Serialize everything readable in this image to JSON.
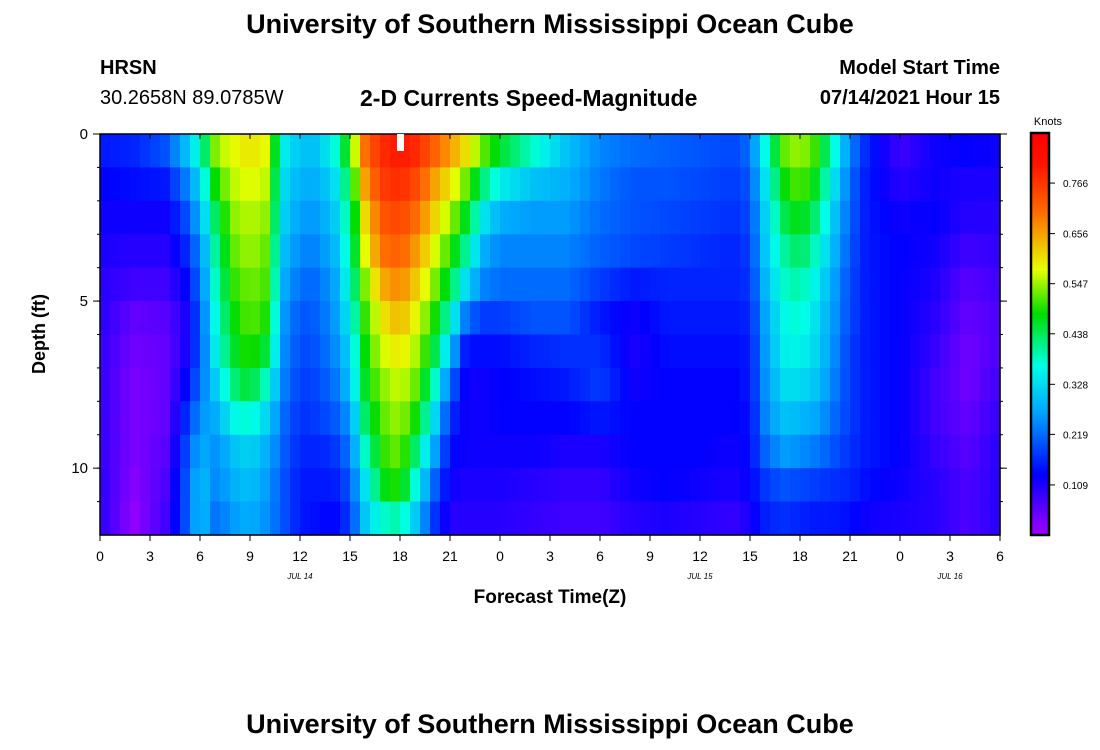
{
  "titles": {
    "top": "University of Southern Mississippi Ocean Cube",
    "bottom": "University of Southern Mississippi Ocean Cube"
  },
  "station": {
    "name": "HRSN",
    "coords": "30.2658N  89.0785W"
  },
  "model": {
    "label": "Model Start Time",
    "value": "07/14/2021 Hour 15"
  },
  "chart_data": {
    "type": "heatmap",
    "title": "2-D Currents Speed-Magnitude",
    "xlabel": "Forecast Time(Z)",
    "ylabel": "Depth (ft)",
    "x_tick_labels": [
      "0",
      "3",
      "6",
      "9",
      "12",
      "15",
      "18",
      "21",
      "0",
      "3",
      "6",
      "9",
      "12",
      "15",
      "18",
      "21",
      "0",
      "3",
      "6"
    ],
    "x_hours": [
      0,
      3,
      6,
      9,
      12,
      15,
      18,
      21,
      24,
      27,
      30,
      33,
      36,
      39,
      42,
      45,
      48,
      51,
      54
    ],
    "date_labels": [
      {
        "label": "JUL 14",
        "hour": 12
      },
      {
        "label": "JUL 15",
        "hour": 36
      },
      {
        "label": "JUL 16",
        "hour": 51
      }
    ],
    "xlim": [
      0,
      54
    ],
    "y_tick_labels": [
      "0",
      "5",
      "10"
    ],
    "y_ticks": [
      0,
      5,
      10
    ],
    "ylim": [
      0,
      12
    ],
    "y_inverted": true,
    "colorbar": {
      "units": "Knots",
      "tick_labels": [
        "0.766",
        "0.656",
        "0.547",
        "0.438",
        "0.328",
        "0.219",
        "0.109"
      ],
      "tick_values": [
        0.766,
        0.656,
        0.547,
        0.438,
        0.328,
        0.219,
        0.109
      ],
      "range": [
        0.0,
        0.875
      ]
    },
    "depths": [
      0.5,
      1.5,
      2.5,
      3.5,
      4.5,
      5.5,
      6.5,
      7.5,
      8.5,
      9.5,
      10.5,
      11.5
    ],
    "profiles": [
      {
        "hour": 0,
        "values": [
          0.15,
          0.13,
          0.12,
          0.11,
          0.1,
          0.1,
          0.09,
          0.09,
          0.09,
          0.09,
          0.1,
          0.1
        ]
      },
      {
        "hour": 2,
        "values": [
          0.16,
          0.14,
          0.12,
          0.1,
          0.08,
          0.05,
          0.04,
          0.03,
          0.03,
          0.03,
          0.02,
          0.01
        ]
      },
      {
        "hour": 4,
        "values": [
          0.2,
          0.15,
          0.12,
          0.1,
          0.08,
          0.06,
          0.05,
          0.05,
          0.05,
          0.06,
          0.07,
          0.08
        ]
      },
      {
        "hour": 5,
        "values": [
          0.28,
          0.22,
          0.18,
          0.15,
          0.12,
          0.1,
          0.1,
          0.12,
          0.15,
          0.17,
          0.18,
          0.18
        ]
      },
      {
        "hour": 6,
        "values": [
          0.38,
          0.32,
          0.28,
          0.24,
          0.22,
          0.2,
          0.2,
          0.22,
          0.25,
          0.28,
          0.3,
          0.3
        ]
      },
      {
        "hour": 7,
        "values": [
          0.55,
          0.5,
          0.45,
          0.42,
          0.4,
          0.38,
          0.36,
          0.32,
          0.28,
          0.25,
          0.24,
          0.22
        ]
      },
      {
        "hour": 8,
        "values": [
          0.58,
          0.56,
          0.54,
          0.52,
          0.5,
          0.48,
          0.46,
          0.42,
          0.36,
          0.3,
          0.28,
          0.26
        ]
      },
      {
        "hour": 9,
        "values": [
          0.6,
          0.58,
          0.56,
          0.55,
          0.53,
          0.52,
          0.5,
          0.46,
          0.38,
          0.32,
          0.3,
          0.28
        ]
      },
      {
        "hour": 10,
        "values": [
          0.58,
          0.56,
          0.54,
          0.52,
          0.51,
          0.49,
          0.45,
          0.38,
          0.32,
          0.28,
          0.26,
          0.25
        ]
      },
      {
        "hour": 11,
        "values": [
          0.35,
          0.33,
          0.32,
          0.3,
          0.28,
          0.26,
          0.25,
          0.24,
          0.22,
          0.21,
          0.2,
          0.2
        ]
      },
      {
        "hour": 12,
        "values": [
          0.3,
          0.28,
          0.26,
          0.24,
          0.22,
          0.2,
          0.19,
          0.18,
          0.17,
          0.16,
          0.15,
          0.15
        ]
      },
      {
        "hour": 13,
        "values": [
          0.3,
          0.28,
          0.26,
          0.24,
          0.22,
          0.21,
          0.2,
          0.19,
          0.18,
          0.16,
          0.15,
          0.14
        ]
      },
      {
        "hour": 14,
        "values": [
          0.36,
          0.32,
          0.3,
          0.28,
          0.26,
          0.25,
          0.24,
          0.22,
          0.2,
          0.17,
          0.15,
          0.13
        ]
      },
      {
        "hour": 15,
        "values": [
          0.5,
          0.45,
          0.42,
          0.4,
          0.38,
          0.35,
          0.32,
          0.3,
          0.26,
          0.23,
          0.2,
          0.18
        ]
      },
      {
        "hour": 16,
        "values": [
          0.72,
          0.68,
          0.63,
          0.6,
          0.55,
          0.52,
          0.5,
          0.48,
          0.45,
          0.4,
          0.35,
          0.32
        ]
      },
      {
        "hour": 17,
        "values": [
          0.78,
          0.76,
          0.73,
          0.7,
          0.65,
          0.6,
          0.57,
          0.54,
          0.52,
          0.5,
          0.47,
          0.38
        ]
      },
      {
        "hour": 18,
        "values": [
          0.8,
          0.78,
          0.75,
          0.72,
          0.68,
          0.64,
          0.6,
          0.57,
          0.55,
          0.53,
          0.5,
          0.4
        ]
      },
      {
        "hour": 19,
        "values": [
          0.78,
          0.74,
          0.7,
          0.66,
          0.62,
          0.58,
          0.55,
          0.52,
          0.48,
          0.42,
          0.36,
          0.3
        ]
      },
      {
        "hour": 20,
        "values": [
          0.72,
          0.66,
          0.62,
          0.58,
          0.54,
          0.5,
          0.46,
          0.4,
          0.34,
          0.28,
          0.22,
          0.18
        ]
      },
      {
        "hour": 21,
        "values": [
          0.66,
          0.6,
          0.55,
          0.5,
          0.45,
          0.38,
          0.3,
          0.22,
          0.17,
          0.14,
          0.12,
          0.1
        ]
      },
      {
        "hour": 22,
        "values": [
          0.6,
          0.52,
          0.46,
          0.4,
          0.32,
          0.22,
          0.14,
          0.12,
          0.12,
          0.12,
          0.11,
          0.1
        ]
      },
      {
        "hour": 23,
        "values": [
          0.52,
          0.42,
          0.34,
          0.28,
          0.24,
          0.18,
          0.14,
          0.12,
          0.12,
          0.12,
          0.11,
          0.1
        ]
      },
      {
        "hour": 24,
        "values": [
          0.46,
          0.35,
          0.28,
          0.24,
          0.22,
          0.18,
          0.14,
          0.13,
          0.13,
          0.12,
          0.11,
          0.1
        ]
      },
      {
        "hour": 26,
        "values": [
          0.38,
          0.3,
          0.26,
          0.24,
          0.22,
          0.2,
          0.16,
          0.14,
          0.13,
          0.12,
          0.1,
          0.09
        ]
      },
      {
        "hour": 28,
        "values": [
          0.3,
          0.28,
          0.26,
          0.24,
          0.22,
          0.2,
          0.17,
          0.15,
          0.13,
          0.11,
          0.09,
          0.08
        ]
      },
      {
        "hour": 30,
        "values": [
          0.24,
          0.23,
          0.22,
          0.21,
          0.18,
          0.15,
          0.17,
          0.18,
          0.15,
          0.11,
          0.09,
          0.08
        ]
      },
      {
        "hour": 32,
        "values": [
          0.22,
          0.2,
          0.2,
          0.19,
          0.15,
          0.12,
          0.11,
          0.12,
          0.13,
          0.13,
          0.12,
          0.1
        ]
      },
      {
        "hour": 34,
        "values": [
          0.21,
          0.2,
          0.19,
          0.18,
          0.16,
          0.15,
          0.14,
          0.13,
          0.13,
          0.13,
          0.13,
          0.11
        ]
      },
      {
        "hour": 36,
        "values": [
          0.2,
          0.19,
          0.18,
          0.17,
          0.16,
          0.15,
          0.14,
          0.13,
          0.13,
          0.13,
          0.12,
          0.1
        ]
      },
      {
        "hour": 38,
        "values": [
          0.19,
          0.18,
          0.17,
          0.16,
          0.16,
          0.15,
          0.14,
          0.13,
          0.13,
          0.12,
          0.11,
          0.09
        ]
      },
      {
        "hour": 39,
        "values": [
          0.22,
          0.2,
          0.19,
          0.18,
          0.17,
          0.16,
          0.15,
          0.15,
          0.14,
          0.14,
          0.13,
          0.11
        ]
      },
      {
        "hour": 40,
        "values": [
          0.38,
          0.35,
          0.33,
          0.32,
          0.3,
          0.28,
          0.27,
          0.26,
          0.25,
          0.22,
          0.18,
          0.16
        ]
      },
      {
        "hour": 41,
        "values": [
          0.52,
          0.48,
          0.44,
          0.4,
          0.38,
          0.36,
          0.35,
          0.33,
          0.3,
          0.26,
          0.2,
          0.17
        ]
      },
      {
        "hour": 42,
        "values": [
          0.55,
          0.52,
          0.48,
          0.44,
          0.4,
          0.38,
          0.36,
          0.33,
          0.29,
          0.25,
          0.19,
          0.16
        ]
      },
      {
        "hour": 43,
        "values": [
          0.5,
          0.46,
          0.42,
          0.38,
          0.35,
          0.33,
          0.32,
          0.3,
          0.27,
          0.23,
          0.18,
          0.15
        ]
      },
      {
        "hour": 44,
        "values": [
          0.38,
          0.34,
          0.31,
          0.29,
          0.27,
          0.26,
          0.25,
          0.24,
          0.22,
          0.2,
          0.17,
          0.15
        ]
      },
      {
        "hour": 45,
        "values": [
          0.24,
          0.22,
          0.21,
          0.2,
          0.19,
          0.19,
          0.18,
          0.18,
          0.18,
          0.17,
          0.16,
          0.14
        ]
      },
      {
        "hour": 46,
        "values": [
          0.16,
          0.15,
          0.15,
          0.15,
          0.15,
          0.15,
          0.15,
          0.15,
          0.15,
          0.15,
          0.14,
          0.12
        ]
      },
      {
        "hour": 48,
        "values": [
          0.08,
          0.1,
          0.12,
          0.13,
          0.13,
          0.13,
          0.13,
          0.13,
          0.13,
          0.13,
          0.12,
          0.11
        ]
      },
      {
        "hour": 50,
        "values": [
          0.12,
          0.12,
          0.13,
          0.12,
          0.11,
          0.1,
          0.09,
          0.08,
          0.08,
          0.09,
          0.1,
          0.1
        ]
      },
      {
        "hour": 52,
        "values": [
          0.13,
          0.11,
          0.1,
          0.08,
          0.06,
          0.05,
          0.04,
          0.04,
          0.05,
          0.06,
          0.07,
          0.07
        ]
      },
      {
        "hour": 54,
        "values": [
          0.12,
          0.11,
          0.1,
          0.09,
          0.08,
          0.07,
          0.07,
          0.08,
          0.09,
          0.1,
          0.1,
          0.1
        ]
      }
    ]
  }
}
